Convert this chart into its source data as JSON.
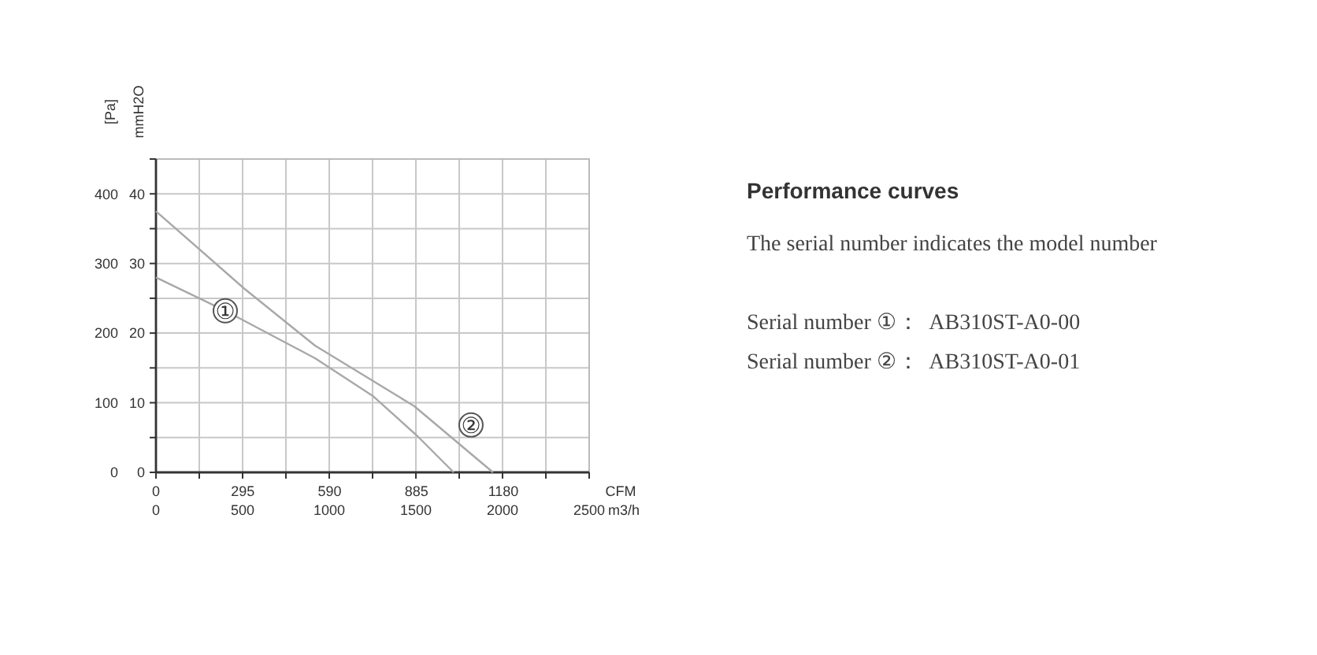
{
  "chart_data": {
    "type": "line",
    "title": "Performance curves",
    "subtitle": "The serial number indicates the model number",
    "xlabel": "m3/h",
    "x2label": "CFM",
    "ylabel": "[Pa]",
    "y2label": "mmH2O",
    "xlim": [
      0,
      2500
    ],
    "xticks": [
      0,
      {
        "value": 250,
        "label": null
      },
      500,
      {
        "value": 750,
        "label": null
      },
      1000,
      {
        "value": 1250,
        "label": null
      },
      1500,
      {
        "value": 1750,
        "label": null
      },
      2000,
      {
        "value": 2250,
        "label": null
      },
      2500
    ],
    "x2lim": [
      0,
      1471.5
    ],
    "x2ticks": [
      0,
      295,
      590,
      885,
      1180
    ],
    "ylim": [
      0,
      450
    ],
    "yticks": [
      0,
      {
        "value": 50,
        "label": null
      },
      100,
      {
        "value": 150,
        "label": null
      },
      200,
      {
        "value": 250,
        "label": null
      },
      300,
      {
        "value": 350,
        "label": null
      },
      400,
      {
        "value": 450,
        "label": null
      }
    ],
    "y2lim": [
      0,
      45
    ],
    "y2ticks": [
      0,
      10,
      20,
      30,
      40
    ],
    "grid": true,
    "line_style": "solid",
    "marker": "none",
    "series": [
      {
        "color": "#a8a8a8",
        "x": [
          0,
          400,
          918,
          1255,
          1509,
          1718
        ],
        "values": [
          280,
          232,
          164,
          109,
          52,
          0
        ]
      },
      {
        "color": "#a8a8a8",
        "x": [
          0,
          509,
          918,
          1491,
          1945
        ],
        "values": [
          375,
          264,
          182,
          95,
          0
        ]
      }
    ],
    "annotations": [
      {
        "text": "①",
        "x": 400,
        "y": 232
      },
      {
        "text": "②",
        "x": 1818,
        "y": 68
      },
      "Serial number ①：  AB310ST-A0-00",
      "Serial number ②：  AB310ST-A0-01"
    ]
  }
}
